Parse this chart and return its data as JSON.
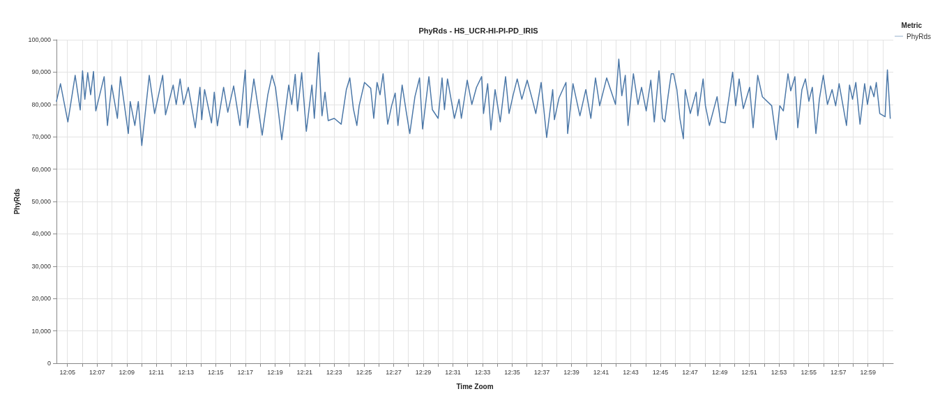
{
  "chart_data": {
    "type": "line",
    "title": "PhyRds - HS_UCR-HI-PI-PD_IRIS",
    "xlabel": "Time Zoom",
    "ylabel": "PhyRds",
    "legend_title": "Metric",
    "legend": "top right",
    "grid": true,
    "marker": "none",
    "line_style": "solid",
    "xlim": [
      12.071,
      13.0118
    ],
    "xticks": [
      {
        "value": 12.0833,
        "label": "12:05"
      },
      {
        "value": 12.1,
        "label": null
      },
      {
        "value": 12.1167,
        "label": "12:07"
      },
      {
        "value": 12.1333,
        "label": null
      },
      {
        "value": 12.15,
        "label": "12:09"
      },
      {
        "value": 12.1667,
        "label": null
      },
      {
        "value": 12.1833,
        "label": "12:11"
      },
      {
        "value": 12.2,
        "label": null
      },
      {
        "value": 12.2167,
        "label": "12:13"
      },
      {
        "value": 12.2333,
        "label": null
      },
      {
        "value": 12.25,
        "label": "12:15"
      },
      {
        "value": 12.2667,
        "label": null
      },
      {
        "value": 12.2833,
        "label": "12:17"
      },
      {
        "value": 12.3,
        "label": null
      },
      {
        "value": 12.3167,
        "label": "12:19"
      },
      {
        "value": 12.3333,
        "label": null
      },
      {
        "value": 12.35,
        "label": "12:21"
      },
      {
        "value": 12.3667,
        "label": null
      },
      {
        "value": 12.3833,
        "label": "12:23"
      },
      {
        "value": 12.4,
        "label": null
      },
      {
        "value": 12.4167,
        "label": "12:25"
      },
      {
        "value": 12.4333,
        "label": null
      },
      {
        "value": 12.45,
        "label": "12:27"
      },
      {
        "value": 12.4667,
        "label": null
      },
      {
        "value": 12.4833,
        "label": "12:29"
      },
      {
        "value": 12.5,
        "label": null
      },
      {
        "value": 12.5167,
        "label": "12:31"
      },
      {
        "value": 12.5333,
        "label": null
      },
      {
        "value": 12.55,
        "label": "12:33"
      },
      {
        "value": 12.5667,
        "label": null
      },
      {
        "value": 12.5833,
        "label": "12:35"
      },
      {
        "value": 12.6,
        "label": null
      },
      {
        "value": 12.6167,
        "label": "12:37"
      },
      {
        "value": 12.6333,
        "label": null
      },
      {
        "value": 12.65,
        "label": "12:39"
      },
      {
        "value": 12.6667,
        "label": null
      },
      {
        "value": 12.6833,
        "label": "12:41"
      },
      {
        "value": 12.7,
        "label": null
      },
      {
        "value": 12.7167,
        "label": "12:43"
      },
      {
        "value": 12.7333,
        "label": null
      },
      {
        "value": 12.75,
        "label": "12:45"
      },
      {
        "value": 12.7667,
        "label": null
      },
      {
        "value": 12.7833,
        "label": "12:47"
      },
      {
        "value": 12.8,
        "label": null
      },
      {
        "value": 12.8167,
        "label": "12:49"
      },
      {
        "value": 12.8333,
        "label": null
      },
      {
        "value": 12.85,
        "label": "12:51"
      },
      {
        "value": 12.8667,
        "label": null
      },
      {
        "value": 12.8833,
        "label": "12:53"
      },
      {
        "value": 12.9,
        "label": null
      },
      {
        "value": 12.9167,
        "label": "12:55"
      },
      {
        "value": 12.9333,
        "label": null
      },
      {
        "value": 12.95,
        "label": "12:57"
      },
      {
        "value": 12.9667,
        "label": null
      },
      {
        "value": 12.9833,
        "label": "12:59"
      },
      {
        "value": 13.0,
        "label": null
      }
    ],
    "ylim": [
      0,
      100000
    ],
    "yticks": [
      {
        "value": 0,
        "label": "0"
      },
      {
        "value": 10000,
        "label": "10,000"
      },
      {
        "value": 20000,
        "label": "20,000"
      },
      {
        "value": 30000,
        "label": "30,000"
      },
      {
        "value": 40000,
        "label": "40,000"
      },
      {
        "value": 50000,
        "label": "50,000"
      },
      {
        "value": 60000,
        "label": "60,000"
      },
      {
        "value": 70000,
        "label": "70,000"
      },
      {
        "value": 80000,
        "label": "80,000"
      },
      {
        "value": 90000,
        "label": "90,000"
      },
      {
        "value": 100000,
        "label": "100,000"
      }
    ],
    "series": [
      {
        "name": "PhyRds",
        "color": "#4c78a8",
        "x": [
          12.071,
          12.0755,
          12.0838,
          12.092,
          12.0977,
          12.1003,
          12.1029,
          12.1061,
          12.1094,
          12.1126,
          12.1152,
          12.1246,
          12.1283,
          12.133,
          12.1395,
          12.1429,
          12.1518,
          12.1539,
          12.1591,
          12.163,
          12.1669,
          12.1753,
          12.1813,
          12.1904,
          12.1936,
          12.2022,
          12.2056,
          12.21,
          12.2139,
          12.2192,
          12.227,
          12.2323,
          12.2343,
          12.2375,
          12.2453,
          12.2484,
          12.2519,
          12.2589,
          12.2636,
          12.2702,
          12.2772,
          12.2832,
          12.2858,
          12.2929,
          12.3023,
          12.3086,
          12.3133,
          12.3172,
          12.3243,
          12.3321,
          12.3355,
          12.3394,
          12.342,
          12.3467,
          12.3519,
          12.3582,
          12.3609,
          12.3656,
          12.3695,
          12.3729,
          12.3765,
          12.3833,
          12.3911,
          12.3969,
          12.4008,
          12.4048,
          12.4087,
          12.4113,
          12.4173,
          12.4243,
          12.4277,
          12.4314,
          12.4348,
          12.4382,
          12.4434,
          12.4478,
          12.4518,
          12.4549,
          12.4596,
          12.4643,
          12.4682,
          12.474,
          12.4792,
          12.4826,
          12.4897,
          12.4936,
          12.5001,
          12.5045,
          12.5072,
          12.5106,
          12.5184,
          12.5236,
          12.5262,
          12.5328,
          12.538,
          12.5432,
          12.549,
          12.5511,
          12.5558,
          12.5594,
          12.5641,
          12.5699,
          12.5759,
          12.5798,
          12.5845,
          12.589,
          12.5942,
          12.6002,
          12.6059,
          12.6099,
          12.6159,
          12.6221,
          12.6289,
          12.6308,
          12.636,
          12.6438,
          12.6457,
          12.6517,
          12.6595,
          12.6661,
          12.6718,
          12.677,
          12.6817,
          12.6896,
          12.6995,
          12.7032,
          12.7066,
          12.7105,
          12.7136,
          12.7196,
          12.7248,
          12.7288,
          12.734,
          12.7392,
          12.7431,
          12.7484,
          12.7523,
          12.7549,
          12.7588,
          12.7622,
          12.7648,
          12.7685,
          12.7719,
          12.7758,
          12.7779,
          12.7836,
          12.7902,
          12.792,
          12.798,
          12.8006,
          12.8051,
          12.8137,
          12.8176,
          12.8228,
          12.8268,
          12.8312,
          12.8346,
          12.8385,
          12.8432,
          12.8503,
          12.8542,
          12.8594,
          12.8646,
          12.8751,
          12.8803,
          12.8842,
          12.8882,
          12.8934,
          12.8965,
          12.9012,
          12.9044,
          12.9091,
          12.913,
          12.9169,
          12.9208,
          12.9248,
          12.9287,
          12.9331,
          12.9378,
          12.943,
          12.947,
          12.9509,
          12.9592,
          12.9626,
          12.966,
          12.9697,
          12.9744,
          12.9796,
          12.9828,
          12.9862,
          12.9901,
          12.9927,
          12.9966,
          13.0026,
          13.0052,
          13.0084
        ],
        "values": [
          81000,
          86400,
          74600,
          89000,
          78300,
          90400,
          81600,
          89800,
          83000,
          90200,
          78000,
          88600,
          73500,
          86000,
          75700,
          88600,
          71000,
          80900,
          73500,
          80900,
          67300,
          89000,
          77200,
          89000,
          76800,
          86000,
          80000,
          87900,
          80000,
          85300,
          72800,
          85300,
          75300,
          84600,
          74300,
          83800,
          73400,
          85300,
          77600,
          85700,
          73500,
          90600,
          72800,
          87900,
          70500,
          83000,
          89000,
          85300,
          69100,
          86000,
          80000,
          89300,
          78000,
          89800,
          71700,
          86000,
          75700,
          96000,
          76500,
          83800,
          75000,
          75700,
          73900,
          84600,
          88200,
          78700,
          73500,
          79600,
          86800,
          85000,
          75700,
          86800,
          83000,
          89500,
          73900,
          79600,
          83500,
          73500,
          86000,
          77600,
          71000,
          82400,
          88200,
          72400,
          88600,
          78400,
          75700,
          88200,
          78400,
          87900,
          75700,
          81600,
          75700,
          87500,
          80000,
          85300,
          88600,
          77200,
          86400,
          72100,
          84600,
          74600,
          88600,
          77200,
          83000,
          87900,
          81600,
          87500,
          81600,
          77200,
          86800,
          69800,
          84600,
          75300,
          82000,
          86800,
          71000,
          86400,
          76500,
          84600,
          75700,
          88200,
          79600,
          88200,
          80000,
          94000,
          82700,
          89000,
          73500,
          89500,
          80000,
          85300,
          78000,
          87500,
          74600,
          90400,
          75700,
          74600,
          83000,
          89500,
          89500,
          84600,
          75700,
          69400,
          84600,
          77200,
          83800,
          76500,
          87900,
          79600,
          73500,
          82400,
          74600,
          74300,
          81600,
          90000,
          79600,
          87900,
          78700,
          85300,
          72800,
          89000,
          82400,
          79600,
          69100,
          79600,
          78000,
          89500,
          84200,
          88600,
          72800,
          84600,
          87900,
          81000,
          85300,
          71000,
          81600,
          89000,
          80000,
          84600,
          79600,
          86400,
          73500,
          86000,
          81600,
          86800,
          73900,
          86400,
          80000,
          85700,
          82400,
          86800,
          77200,
          76200,
          90700,
          75700
        ]
      }
    ]
  }
}
